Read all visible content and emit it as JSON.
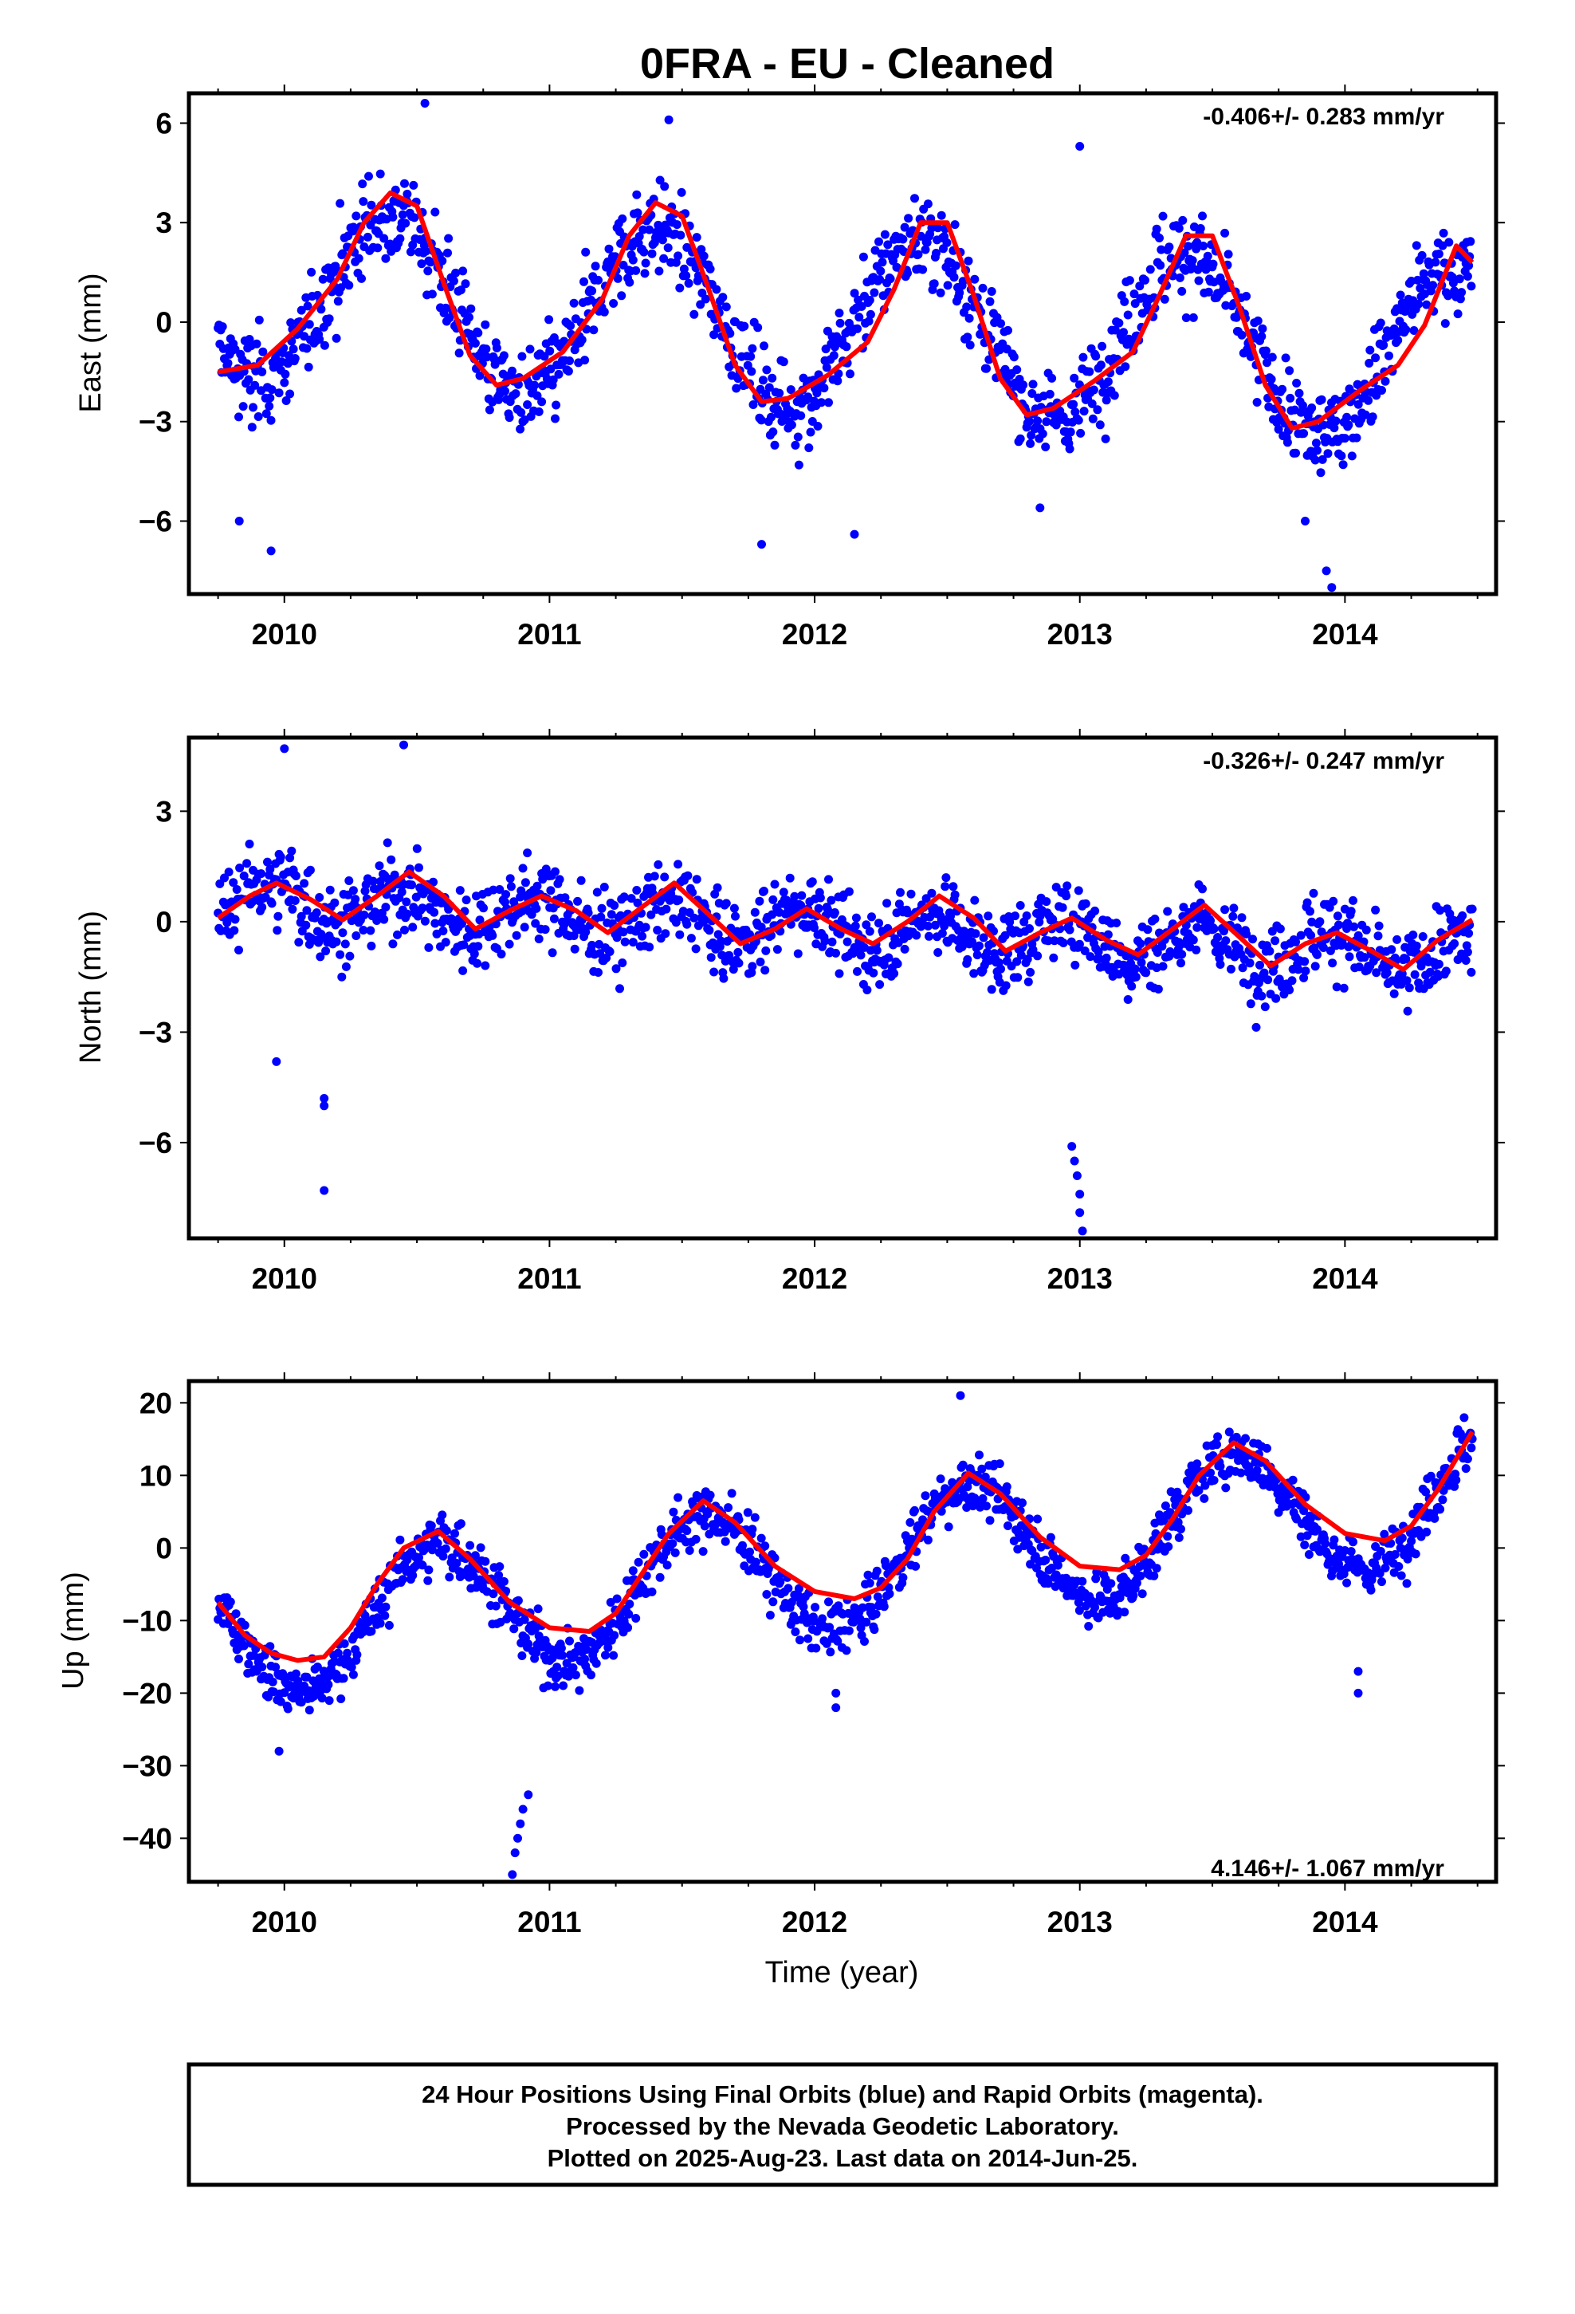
{
  "title": "0FRA  - EU - Cleaned",
  "x_axis_label": "Time (year)",
  "footer_lines": [
    "24 Hour Positions Using Final Orbits (blue) and Rapid Orbits (magenta).",
    "Processed by the Nevada Geodetic Laboratory.",
    "Plotted on 2025-Aug-23. Last data on 2014-Jun-25."
  ],
  "colors": {
    "points": "#0000ff",
    "fit": "#ff0000",
    "frame": "#000000"
  },
  "chart_data": [
    {
      "type": "scatter",
      "ylabel": "East (mm)",
      "xlim": [
        2009.64,
        2014.57
      ],
      "ylim": [
        -8.2,
        6.9
      ],
      "x_ticks": [
        2010,
        2011,
        2012,
        2013,
        2014
      ],
      "y_ticks": [
        6,
        3,
        0,
        -3,
        -6
      ],
      "y_tick_labels": [
        "6",
        "3",
        "0",
        "−3",
        "−6"
      ],
      "rate_label": "-0.406+/- 0.283 mm/yr",
      "rate_position": "top-right",
      "series": [
        {
          "kind": "points",
          "x_range": [
            2009.75,
            2014.48
          ],
          "trend": {
            "t0": 2009.75,
            "y0": 0.9,
            "slope": -0.406,
            "amp": 2.6,
            "phase": 2010.4,
            "period": 1.0,
            "noise": 1.4
          },
          "outliers": [
            [
              2009.83,
              -6.0
            ],
            [
              2009.95,
              -6.9
            ],
            [
              2010.53,
              6.6
            ],
            [
              2011.45,
              6.1
            ],
            [
              2011.8,
              -6.7
            ],
            [
              2012.15,
              -6.4
            ],
            [
              2012.85,
              -5.6
            ],
            [
              2013.0,
              5.3
            ],
            [
              2013.85,
              -6.0
            ],
            [
              2013.93,
              -7.5
            ],
            [
              2013.95,
              -8.0
            ]
          ]
        },
        {
          "kind": "fit_line",
          "x": [
            2009.75,
            2009.9,
            2010.05,
            2010.2,
            2010.3,
            2010.4,
            2010.5,
            2010.6,
            2010.7,
            2010.8,
            2010.9,
            2011.05,
            2011.2,
            2011.3,
            2011.4,
            2011.5,
            2011.6,
            2011.7,
            2011.8,
            2011.9,
            2012.05,
            2012.2,
            2012.3,
            2012.4,
            2012.5,
            2012.6,
            2012.7,
            2012.8,
            2012.9,
            2013.05,
            2013.2,
            2013.3,
            2013.4,
            2013.5,
            2013.6,
            2013.7,
            2013.8,
            2013.9,
            2014.05,
            2014.2,
            2014.3,
            2014.42,
            2014.48
          ],
          "y": [
            -1.5,
            -1.3,
            -0.2,
            1.3,
            3.0,
            3.9,
            3.5,
            1.2,
            -1.0,
            -1.9,
            -1.7,
            -0.9,
            0.7,
            2.6,
            3.6,
            3.2,
            1.0,
            -1.3,
            -2.4,
            -2.3,
            -1.6,
            -0.6,
            1.0,
            3.0,
            3.0,
            0.8,
            -1.7,
            -2.8,
            -2.6,
            -1.8,
            -0.9,
            0.8,
            2.6,
            2.6,
            0.5,
            -1.9,
            -3.2,
            -3.0,
            -2.1,
            -1.3,
            -0.1,
            2.3,
            1.8
          ]
        }
      ]
    },
    {
      "type": "scatter",
      "ylabel": "North (mm)",
      "xlim": [
        2009.64,
        2014.57
      ],
      "ylim": [
        -8.6,
        5.0
      ],
      "x_ticks": [
        2010,
        2011,
        2012,
        2013,
        2014
      ],
      "y_ticks": [
        3,
        0,
        -3,
        -6
      ],
      "y_tick_labels": [
        "3",
        "0",
        "−3",
        "−6"
      ],
      "rate_label": "-0.326+/- 0.247 mm/yr",
      "rate_position": "top-right",
      "series": [
        {
          "kind": "points",
          "x_range": [
            2009.75,
            2014.48
          ],
          "trend": {
            "t0": 2009.75,
            "y0": 0.6,
            "slope": -0.326,
            "amp": 0.5,
            "phase": 2009.95,
            "period": 0.5,
            "noise": 1.1
          },
          "outliers": [
            [
              2009.97,
              -3.8
            ],
            [
              2010.15,
              -4.8
            ],
            [
              2010.15,
              -5.0
            ],
            [
              2010.15,
              -7.3
            ],
            [
              2010.45,
              4.8
            ],
            [
              2010.0,
              4.7
            ],
            [
              2012.97,
              -6.1
            ],
            [
              2012.98,
              -6.5
            ],
            [
              2012.99,
              -6.9
            ],
            [
              2013.0,
              -7.4
            ],
            [
              2013.0,
              -7.9
            ],
            [
              2013.01,
              -8.4
            ]
          ]
        },
        {
          "kind": "fit_line",
          "x": [
            2009.75,
            2009.87,
            2009.97,
            2010.1,
            2010.22,
            2010.35,
            2010.47,
            2010.6,
            2010.72,
            2010.85,
            2010.97,
            2011.1,
            2011.22,
            2011.35,
            2011.47,
            2011.6,
            2011.72,
            2011.85,
            2011.97,
            2012.1,
            2012.22,
            2012.35,
            2012.47,
            2012.6,
            2012.72,
            2012.85,
            2012.97,
            2013.1,
            2013.22,
            2013.35,
            2013.47,
            2013.6,
            2013.72,
            2013.85,
            2013.97,
            2014.1,
            2014.22,
            2014.35,
            2014.48
          ],
          "y": [
            0.1,
            0.7,
            1.05,
            0.6,
            0.05,
            0.7,
            1.35,
            0.7,
            -0.2,
            0.3,
            0.7,
            0.3,
            -0.3,
            0.4,
            1.05,
            0.2,
            -0.6,
            -0.2,
            0.35,
            -0.2,
            -0.6,
            0.0,
            0.7,
            0.1,
            -0.8,
            -0.3,
            0.1,
            -0.5,
            -0.9,
            -0.2,
            0.45,
            -0.4,
            -1.2,
            -0.6,
            -0.3,
            -0.8,
            -1.3,
            -0.5,
            0.05
          ]
        }
      ]
    },
    {
      "type": "scatter",
      "ylabel": "Up (mm)",
      "xlim": [
        2009.64,
        2014.57
      ],
      "ylim": [
        -46,
        23
      ],
      "x_ticks": [
        2010,
        2011,
        2012,
        2013,
        2014
      ],
      "y_ticks": [
        20,
        10,
        0,
        -10,
        -20,
        -30,
        -40
      ],
      "y_tick_labels": [
        "20",
        "10",
        "0",
        "−10",
        "−20",
        "−30",
        "−40"
      ],
      "rate_label": "4.146+/- 1.067 mm/yr",
      "rate_position": "bottom-right",
      "series": [
        {
          "kind": "points",
          "x_range": [
            2009.75,
            2014.48
          ],
          "trend": {
            "t0": 2009.75,
            "y0": -12.0,
            "slope": 4.146,
            "amp": 9.0,
            "phase": 2010.58,
            "period": 1.0,
            "noise": 4.0
          },
          "outliers": [
            [
              2009.98,
              -28.0
            ],
            [
              2010.92,
              -34.0
            ],
            [
              2010.9,
              -36.0
            ],
            [
              2010.89,
              -38.0
            ],
            [
              2010.88,
              -40.0
            ],
            [
              2010.87,
              -42.0
            ],
            [
              2010.86,
              -45.0
            ],
            [
              2012.08,
              -22.0
            ],
            [
              2012.08,
              -20.0
            ],
            [
              2012.55,
              21.0
            ],
            [
              2014.05,
              -20.0
            ],
            [
              2014.05,
              -17.0
            ]
          ]
        },
        {
          "kind": "fit_line",
          "x": [
            2009.75,
            2009.85,
            2009.95,
            2010.05,
            2010.15,
            2010.25,
            2010.35,
            2010.45,
            2010.58,
            2010.7,
            2010.85,
            2011.0,
            2011.15,
            2011.25,
            2011.35,
            2011.45,
            2011.58,
            2011.7,
            2011.85,
            2012.0,
            2012.15,
            2012.25,
            2012.35,
            2012.45,
            2012.58,
            2012.7,
            2012.85,
            2013.0,
            2013.15,
            2013.25,
            2013.35,
            2013.45,
            2013.58,
            2013.7,
            2013.85,
            2014.0,
            2014.15,
            2014.25,
            2014.35,
            2014.48
          ],
          "y": [
            -7.5,
            -12.0,
            -14.5,
            -15.5,
            -15.0,
            -11.0,
            -5.0,
            0.0,
            2.3,
            -1.5,
            -7.5,
            -11.0,
            -11.5,
            -9.0,
            -3.5,
            2.0,
            6.5,
            3.5,
            -2.5,
            -6.0,
            -7.0,
            -5.5,
            -1.5,
            5.0,
            10.3,
            7.5,
            1.5,
            -2.5,
            -3.0,
            -1.0,
            4.0,
            10.0,
            14.5,
            12.0,
            6.0,
            2.0,
            1.0,
            3.0,
            8.0,
            16.0
          ]
        }
      ]
    }
  ]
}
